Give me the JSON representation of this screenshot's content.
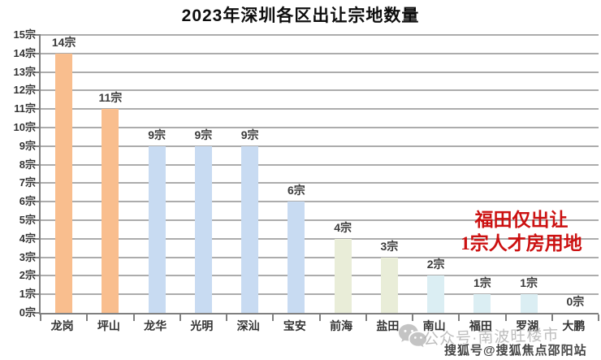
{
  "title": "2023年深圳各区出让宗地数量",
  "chart_data": {
    "type": "bar",
    "title": "2023年深圳各区出让宗地数量",
    "categories": [
      "龙岗",
      "坪山",
      "龙华",
      "光明",
      "深汕",
      "宝安",
      "前海",
      "盐田",
      "南山",
      "福田",
      "罗湖",
      "大鹏"
    ],
    "values": [
      14,
      11,
      9,
      9,
      9,
      6,
      4,
      3,
      2,
      1,
      1,
      0
    ],
    "value_labels": [
      "14宗",
      "11宗",
      "9宗",
      "9宗",
      "9宗",
      "6宗",
      "4宗",
      "3宗",
      "2宗",
      "1宗",
      "1宗",
      "0宗"
    ],
    "bar_colors": [
      "#f9be8e",
      "#f9be8e",
      "#c8dbf2",
      "#c8dbf2",
      "#c8dbf2",
      "#c8dbf2",
      "#e9edd8",
      "#e9edd8",
      "#dbeef3",
      "#dbeef3",
      "#dbeef3",
      "#dbeef3"
    ],
    "ylim": [
      0,
      15
    ],
    "y_tick_step": 1,
    "y_ticks": [
      "0宗",
      "1宗",
      "2宗",
      "3宗",
      "4宗",
      "5宗",
      "6宗",
      "7宗",
      "8宗",
      "9宗",
      "10宗",
      "11宗",
      "12宗",
      "13宗",
      "14宗",
      "15宗"
    ],
    "xlabel": "",
    "ylabel": "",
    "grid": true,
    "legend_position": "none"
  },
  "annotation": {
    "line1": "福田仅出让",
    "line2": "1宗人才房用地",
    "color": "#cc1111"
  },
  "watermarks": {
    "wechat_account_text": "公众号·南波旺楼市",
    "sohu_text": "搜狐号@搜狐焦点邵阳站"
  },
  "colors": {
    "grid": "#acacac",
    "axis": "#808080",
    "tick_label": "#333333",
    "value_label": "#3a3a3a",
    "title": "#0d0d0d",
    "bar_orange": "#f9be8e",
    "bar_blue": "#c8dbf2",
    "bar_olive": "#e9edd8",
    "bar_cyan": "#dbeef3"
  }
}
